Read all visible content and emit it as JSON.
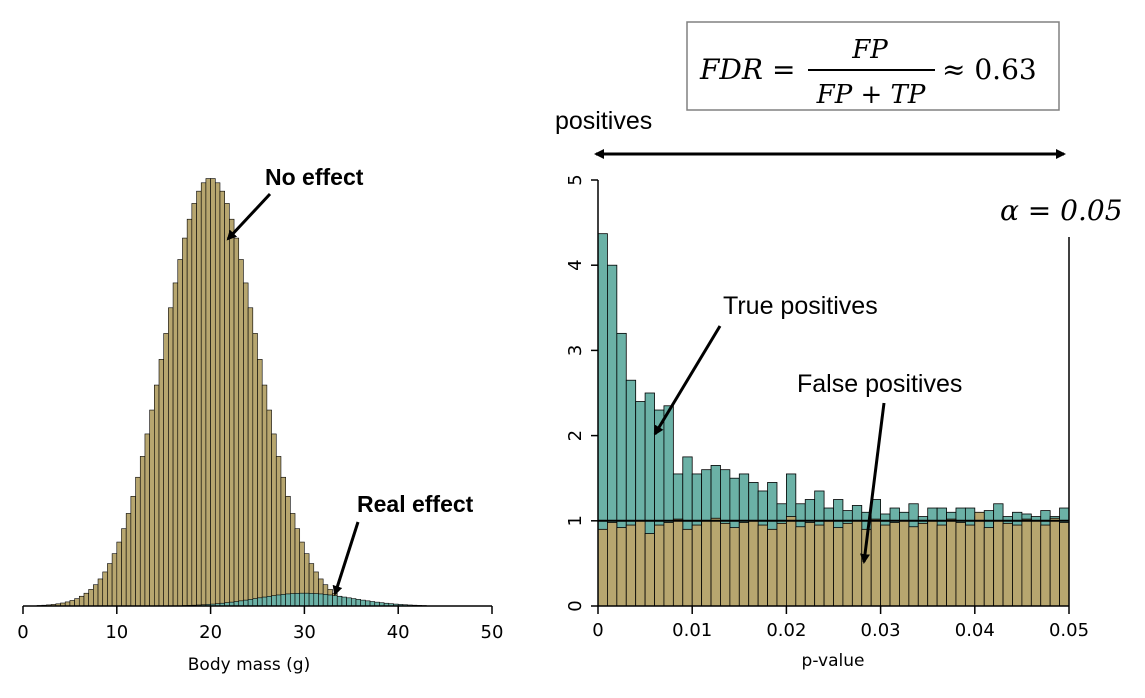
{
  "colors": {
    "no_effect": "#b7a66f",
    "real_effect": "#6bb1a6",
    "stroke": "#000000"
  },
  "formula": {
    "lhs": "FDR",
    "numerator": "FP",
    "denominator": "FP + TP",
    "approx": "≈ 0.63"
  },
  "chart_data": [
    {
      "type": "histogram",
      "xlabel": "Body mass (g)",
      "xlim": [
        0,
        50
      ],
      "xticks": [
        "0",
        "10",
        "20",
        "30",
        "40",
        "50"
      ],
      "series": [
        {
          "name": "No effect",
          "distribution": "normal",
          "mean": 20,
          "sd": 5,
          "peak_height": 1.0,
          "color": "#b7a66f"
        },
        {
          "name": "Real effect",
          "distribution": "normal",
          "mean": 30,
          "sd": 5,
          "peak_height": 0.03,
          "color": "#6bb1a6"
        }
      ],
      "bin_width": 0.5,
      "annotations": [
        "No effect",
        "Real effect"
      ]
    },
    {
      "type": "histogram",
      "xlabel": "p-value",
      "xlim": [
        0,
        0.05
      ],
      "ylim": [
        0,
        5
      ],
      "xticks": [
        "0",
        "0.01",
        "0.02",
        "0.03",
        "0.04",
        "0.05"
      ],
      "yticks": [
        "0",
        "1",
        "2",
        "3",
        "4",
        "5"
      ],
      "bin_width": 0.001,
      "series": [
        {
          "name": "True positives",
          "color": "#6bb1a6",
          "values": [
            4.37,
            4.0,
            3.2,
            2.65,
            2.4,
            2.5,
            2.3,
            2.35,
            1.55,
            1.75,
            1.55,
            1.6,
            1.65,
            1.6,
            1.5,
            1.55,
            1.45,
            1.35,
            1.45,
            1.2,
            1.55,
            1.2,
            1.25,
            1.35,
            1.15,
            1.25,
            1.12,
            1.18,
            1.1,
            1.25,
            1.08,
            1.15,
            1.1,
            1.2,
            1.05,
            1.15,
            1.15,
            1.1,
            1.15,
            1.15,
            1.05,
            1.12,
            1.2,
            1.05,
            1.1,
            1.08,
            1.05,
            1.12,
            1.05,
            1.15
          ]
        },
        {
          "name": "False positives",
          "color": "#b7a66f",
          "values": [
            0.9,
            0.98,
            0.92,
            0.95,
            1.0,
            0.85,
            0.95,
            0.98,
            1.02,
            0.9,
            0.95,
            1.0,
            1.03,
            0.97,
            0.92,
            0.98,
            1.0,
            0.95,
            0.9,
            0.97,
            1.05,
            0.93,
            0.98,
            0.95,
            1.0,
            0.92,
            0.97,
            1.0,
            0.9,
            1.02,
            0.95,
            0.98,
            1.0,
            0.93,
            0.97,
            1.0,
            0.95,
            1.02,
            0.98,
            0.95,
            1.1,
            0.92,
            1.0,
            0.97,
            0.95,
            1.02,
            1.0,
            0.95,
            1.03,
            0.98
          ]
        }
      ],
      "expected_line": 1.0,
      "annotations": [
        "True positives",
        "False positives"
      ]
    }
  ],
  "labels": {
    "positives": "positives",
    "alpha": "α = 0.05",
    "true_positives": "True positives",
    "false_positives": "False positives",
    "no_effect": "No effect",
    "real_effect": "Real effect"
  }
}
